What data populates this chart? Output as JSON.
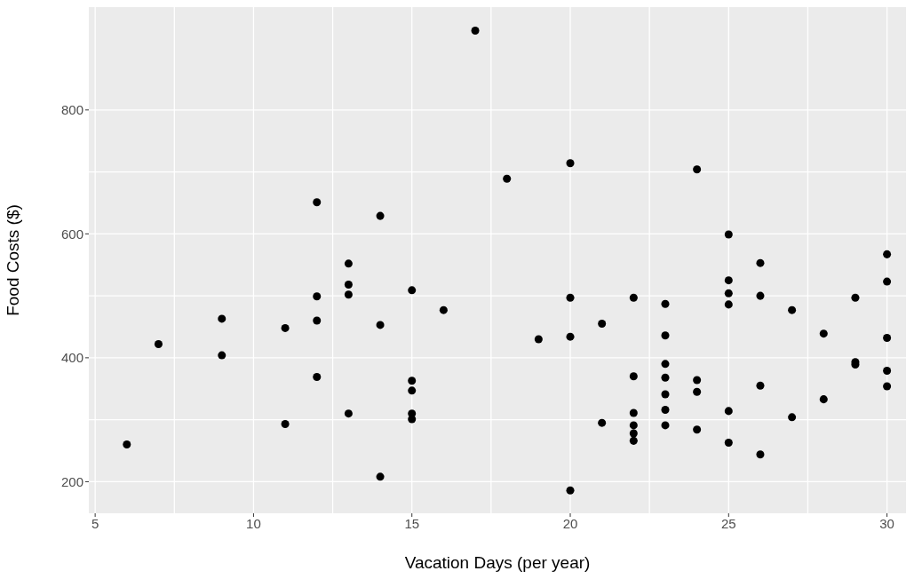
{
  "chart_data": {
    "type": "scatter",
    "xlabel": "Vacation Days (per year)",
    "ylabel": "Food Costs ($)",
    "x": [
      6,
      7,
      9,
      9,
      11,
      11,
      12,
      12,
      12,
      12,
      13,
      13,
      13,
      13,
      14,
      14,
      14,
      15,
      15,
      15,
      15,
      15,
      16,
      17,
      18,
      19,
      20,
      20,
      20,
      20,
      21,
      21,
      22,
      22,
      22,
      22,
      22,
      22,
      23,
      23,
      23,
      23,
      23,
      23,
      23,
      24,
      24,
      24,
      24,
      25,
      25,
      25,
      25,
      25,
      25,
      26,
      26,
      26,
      26,
      27,
      27,
      28,
      28,
      29,
      29,
      29,
      30,
      30,
      30,
      30,
      30
    ],
    "values": [
      260,
      422,
      463,
      404,
      448,
      293,
      651,
      499,
      460,
      369,
      552,
      518,
      502,
      310,
      629,
      453,
      208,
      509,
      363,
      347,
      310,
      301,
      477,
      928,
      689,
      430,
      714,
      497,
      434,
      186,
      455,
      295,
      497,
      370,
      311,
      291,
      278,
      266,
      487,
      436,
      390,
      368,
      341,
      316,
      291,
      704,
      364,
      345,
      284,
      599,
      525,
      504,
      486,
      314,
      263,
      553,
      500,
      355,
      244,
      477,
      304,
      439,
      333,
      497,
      393,
      389,
      567,
      523,
      432,
      379,
      354
    ],
    "color": "#000000",
    "marker": "circle",
    "grid": true,
    "xlim": [
      4.8,
      30.6
    ],
    "xticks": [
      5,
      10,
      15,
      20,
      25,
      30
    ],
    "ylim": [
      149,
      966
    ],
    "yticks": [
      200,
      400,
      600,
      800
    ]
  }
}
